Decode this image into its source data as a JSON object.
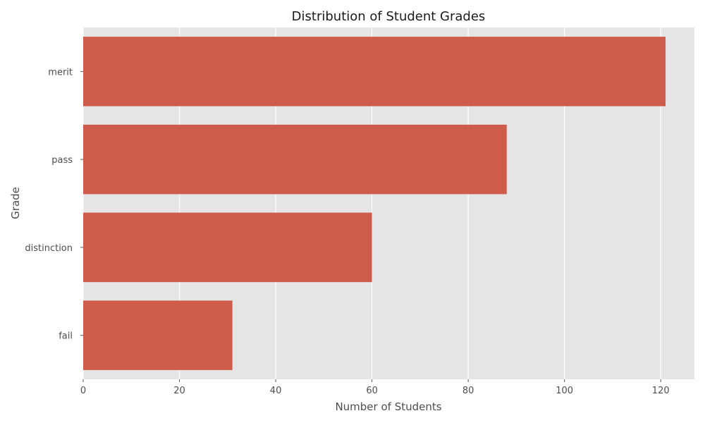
{
  "chart_data": {
    "type": "bar",
    "orientation": "horizontal",
    "title": "Distribution of Student Grades",
    "xlabel": "Number of Students",
    "ylabel": "Grade",
    "categories": [
      "merit",
      "pass",
      "distinction",
      "fail"
    ],
    "values": [
      121,
      88,
      60,
      31
    ],
    "xlim": [
      0,
      127
    ],
    "xticks": [
      0,
      20,
      40,
      60,
      80,
      100,
      120
    ],
    "grid": true,
    "colors": {
      "bar": "#CF5C4A",
      "background": "#E5E5E5",
      "grid": "#FFFFFF"
    }
  }
}
